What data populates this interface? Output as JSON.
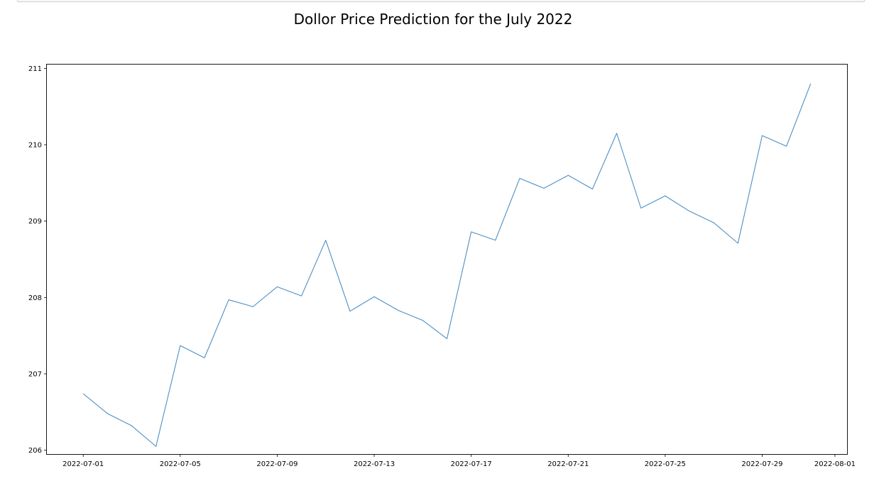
{
  "chart_data": {
    "type": "line",
    "title": "Dollor Price Prediction for the July 2022",
    "xlabel": "",
    "ylabel": "",
    "x_tick_labels": [
      "2022-07-01",
      "2022-07-05",
      "2022-07-09",
      "2022-07-13",
      "2022-07-17",
      "2022-07-21",
      "2022-07-25",
      "2022-07-29",
      "2022-08-01"
    ],
    "x_tick_dates": [
      "2022-07-01",
      "2022-07-05",
      "2022-07-09",
      "2022-07-13",
      "2022-07-17",
      "2022-07-21",
      "2022-07-25",
      "2022-07-29",
      "2022-08-01"
    ],
    "y_ticks": [
      206,
      207,
      208,
      209,
      210,
      211
    ],
    "xlim": [
      "2022-06-29T12:00",
      "2022-08-01T12:00"
    ],
    "ylim": [
      205.95,
      211.05
    ],
    "grid": false,
    "series": [
      {
        "color": "#4c8fc4",
        "x": [
          "2022-07-01",
          "2022-07-02",
          "2022-07-03",
          "2022-07-04",
          "2022-07-05",
          "2022-07-06",
          "2022-07-07",
          "2022-07-08",
          "2022-07-09",
          "2022-07-10",
          "2022-07-11",
          "2022-07-12",
          "2022-07-13",
          "2022-07-14",
          "2022-07-15",
          "2022-07-16",
          "2022-07-17",
          "2022-07-18",
          "2022-07-19",
          "2022-07-20",
          "2022-07-21",
          "2022-07-22",
          "2022-07-23",
          "2022-07-24",
          "2022-07-25",
          "2022-07-26",
          "2022-07-27",
          "2022-07-28",
          "2022-07-29",
          "2022-07-30",
          "2022-07-31"
        ],
        "values": [
          206.74,
          206.48,
          206.32,
          206.05,
          207.37,
          207.21,
          207.97,
          207.88,
          208.14,
          208.02,
          208.75,
          207.82,
          208.01,
          207.83,
          207.7,
          207.46,
          208.86,
          208.75,
          209.56,
          209.43,
          209.6,
          209.42,
          210.15,
          209.17,
          209.33,
          209.13,
          208.98,
          208.71,
          210.12,
          209.98,
          210.8
        ]
      }
    ]
  }
}
